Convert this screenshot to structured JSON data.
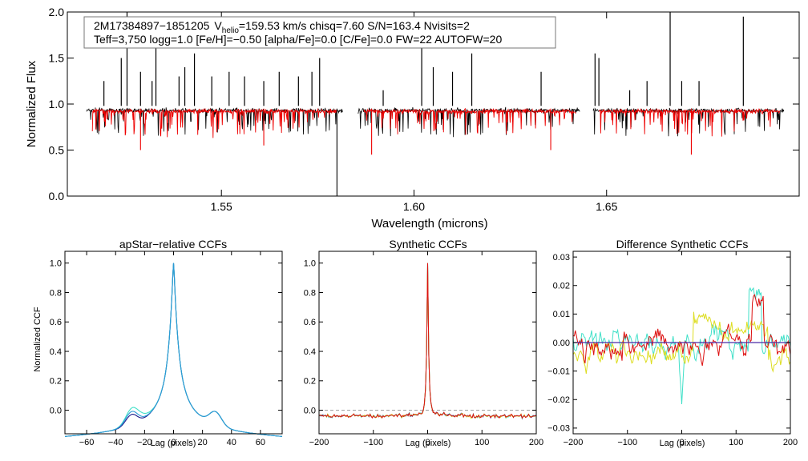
{
  "chart_data": [
    {
      "type": "line",
      "id": "spectrum",
      "xlabel": "Wavelength (microns)",
      "ylabel": "Normalized Flux",
      "xlim": [
        1.51,
        1.7
      ],
      "ylim": [
        0.0,
        2.0
      ],
      "xticks": [
        1.55,
        1.6,
        1.65
      ],
      "xtick_labels": [
        "1.55",
        "1.60",
        "1.65"
      ],
      "yticks": [
        0.0,
        0.5,
        1.0,
        1.5,
        2.0
      ],
      "ytick_labels": [
        "0.0",
        "0.5",
        "1.0",
        "1.5",
        "2.0"
      ],
      "annotation": {
        "star_id": "2M17384897−1851205",
        "v_label": "V",
        "v_sub": "helio",
        "line1_rest": "=159.53 km/s  chisq=7.60  S/N=163.4  Nvisits=2",
        "line2": "Teff=3,750 logg=1.0 [Fe/H]=−0.50 [alpha/Fe]=0.0 [C/Fe]=0.0 FW=22 AUTOFW=20"
      },
      "series": [
        {
          "name": "observed",
          "color": "#000000",
          "segments": [
            [
              1.515,
              1.5815
            ],
            [
              1.5855,
              1.643
            ],
            [
              1.6465,
              1.696
            ]
          ]
        },
        {
          "name": "model",
          "color": "#ee0000",
          "segments": [
            [
              1.5165,
              1.58
            ],
            [
              1.587,
              1.642
            ],
            [
              1.648,
              1.695
            ]
          ]
        }
      ],
      "spikes": [
        {
          "x": 1.5195,
          "y": 1.25
        },
        {
          "x": 1.524,
          "y": 1.5
        },
        {
          "x": 1.5255,
          "y": 2.0
        },
        {
          "x": 1.529,
          "y": 1.35
        },
        {
          "x": 1.532,
          "y": 1.25
        },
        {
          "x": 1.533,
          "y": 1.8
        },
        {
          "x": 1.539,
          "y": 1.3
        },
        {
          "x": 1.5405,
          "y": 1.4
        },
        {
          "x": 1.543,
          "y": 1.55
        },
        {
          "x": 1.5475,
          "y": 1.3
        },
        {
          "x": 1.552,
          "y": 1.35
        },
        {
          "x": 1.556,
          "y": 1.3
        },
        {
          "x": 1.561,
          "y": 1.25
        },
        {
          "x": 1.565,
          "y": 1.35
        },
        {
          "x": 1.57,
          "y": 1.3
        },
        {
          "x": 1.5735,
          "y": 1.35
        },
        {
          "x": 1.5755,
          "y": 1.5
        },
        {
          "x": 1.592,
          "y": 1.15
        },
        {
          "x": 1.602,
          "y": 1.65
        },
        {
          "x": 1.605,
          "y": 1.4
        },
        {
          "x": 1.61,
          "y": 1.35
        },
        {
          "x": 1.615,
          "y": 1.55
        },
        {
          "x": 1.633,
          "y": 1.35
        },
        {
          "x": 1.647,
          "y": 1.55
        },
        {
          "x": 1.648,
          "y": 1.5
        },
        {
          "x": 1.656,
          "y": 1.15
        },
        {
          "x": 1.6605,
          "y": 1.25
        },
        {
          "x": 1.6665,
          "y": 2.0
        },
        {
          "x": 1.6695,
          "y": 1.25
        },
        {
          "x": 1.674,
          "y": 1.25
        },
        {
          "x": 1.6855,
          "y": 1.95
        }
      ],
      "dips": [
        {
          "x": 1.58,
          "y": 0.0
        },
        {
          "x": 1.589,
          "y": 0.45
        },
        {
          "x": 1.529,
          "y": 0.5
        },
        {
          "x": 1.561,
          "y": 0.55
        },
        {
          "x": 1.6355,
          "y": 0.5
        },
        {
          "x": 1.672,
          "y": 0.45
        }
      ]
    },
    {
      "type": "line",
      "id": "apstar-ccf",
      "title": "apStar−relative CCFs",
      "xlabel": "Lag (pixels)",
      "ylabel": "Normalized CCF",
      "xlim": [
        -75,
        75
      ],
      "ylim": [
        -0.16,
        1.08
      ],
      "xticks": [
        -60,
        -40,
        -20,
        0,
        20,
        40,
        60
      ],
      "xtick_labels": [
        "−60",
        "−40",
        "−20",
        "0",
        "20",
        "40",
        "60"
      ],
      "yticks": [
        0.0,
        0.2,
        0.4,
        0.6,
        0.8,
        1.0
      ],
      "ytick_labels": [
        "0.0",
        "0.2",
        "0.4",
        "0.6",
        "0.8",
        "1.0"
      ],
      "series": [
        {
          "name": "visit1",
          "color": "#1a1a8c"
        },
        {
          "name": "visit2",
          "color": "#40e0c8"
        },
        {
          "name": "combined",
          "color": "#2a9ad6"
        }
      ]
    },
    {
      "type": "line",
      "id": "synthetic-ccf",
      "title": "Synthetic CCFs",
      "xlabel": "Lag (pixels)",
      "xlim": [
        -200,
        200
      ],
      "ylim": [
        -0.16,
        1.08
      ],
      "xticks": [
        -200,
        -100,
        0,
        100,
        200
      ],
      "xtick_labels": [
        "−200",
        "−100",
        "0",
        "100",
        "200"
      ],
      "yticks": [
        0.0,
        0.2,
        0.4,
        0.6,
        0.8,
        1.0
      ],
      "ytick_labels": [
        "0.0",
        "0.2",
        "0.4",
        "0.6",
        "0.8",
        "1.0"
      ],
      "series": [
        {
          "name": "s1",
          "color": "#1a1a8c"
        },
        {
          "name": "s2",
          "color": "#40e0c8"
        },
        {
          "name": "s3",
          "color": "#dddd20"
        },
        {
          "name": "s4",
          "color": "#dd1010"
        }
      ]
    },
    {
      "type": "line",
      "id": "difference-ccf",
      "title": "Difference Synthetic CCFs",
      "xlabel": "Lag (pixels)",
      "xlim": [
        -200,
        200
      ],
      "ylim": [
        -0.032,
        0.032
      ],
      "xticks": [
        -200,
        -100,
        0,
        100,
        200
      ],
      "xtick_labels": [
        "−200",
        "−100",
        "0",
        "100",
        "200"
      ],
      "yticks": [
        -0.03,
        -0.02,
        -0.01,
        0.0,
        0.01,
        0.02,
        0.03
      ],
      "ytick_labels": [
        "−0.03",
        "−0.02",
        "−0.01",
        "0.00",
        "0.01",
        "0.02",
        "0.03"
      ],
      "series": [
        {
          "name": "zero",
          "color": "#4a2aa8"
        },
        {
          "name": "d1",
          "color": "#40e0c8"
        },
        {
          "name": "d2",
          "color": "#dddd20"
        },
        {
          "name": "d3",
          "color": "#dd1010"
        }
      ]
    }
  ]
}
